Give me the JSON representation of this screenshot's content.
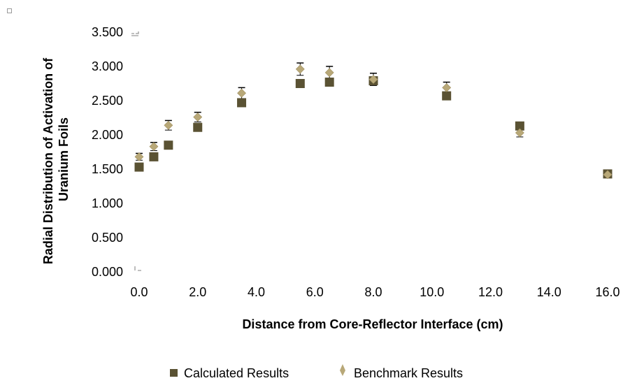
{
  "colors": {
    "calculated": "#5a5233",
    "benchmark": "#b8a878",
    "error_bar": "#000000",
    "corner_marks": "#9a9a9a"
  },
  "chart_data": {
    "type": "scatter",
    "xlabel": "Distance from Core-Reflector Interface (cm)",
    "ylabel": "Radial Distribution of Activation of Uranium Foils",
    "xlim": [
      0,
      16
    ],
    "ylim": [
      0,
      3.5
    ],
    "x_ticks": [
      0,
      2,
      4,
      6,
      8,
      10,
      12,
      14,
      16
    ],
    "y_ticks": [
      0,
      0.5,
      1,
      1.5,
      2,
      2.5,
      3,
      3.5
    ],
    "x_tick_labels": [
      "0.0",
      "2.0",
      "4.0",
      "6.0",
      "8.0",
      "10.0",
      "12.0",
      "14.0",
      "16.0"
    ],
    "y_tick_labels": [
      "0.000",
      "0.500",
      "1.000",
      "1.500",
      "2.000",
      "2.500",
      "3.000",
      "3.500"
    ],
    "grid": false,
    "legend_position": "bottom",
    "series": [
      {
        "name": "Calculated Results",
        "marker": "square",
        "x": [
          0,
          0.5,
          1,
          2,
          3.5,
          5.5,
          6.5,
          8,
          10.5,
          13,
          16
        ],
        "y": [
          1.53,
          1.68,
          1.85,
          2.11,
          2.47,
          2.75,
          2.77,
          2.79,
          2.57,
          2.13,
          1.43
        ]
      },
      {
        "name": "Benchmark Results",
        "marker": "diamond",
        "x": [
          0,
          0.5,
          1,
          2,
          3.5,
          5.5,
          6.5,
          8,
          10.5,
          13,
          16
        ],
        "y": [
          1.68,
          1.83,
          2.14,
          2.26,
          2.61,
          2.96,
          2.91,
          2.81,
          2.69,
          2.03,
          1.42
        ],
        "error": [
          0.05,
          0.06,
          0.07,
          0.07,
          0.08,
          0.09,
          0.09,
          0.09,
          0.08,
          0.06,
          0.04
        ]
      }
    ]
  }
}
